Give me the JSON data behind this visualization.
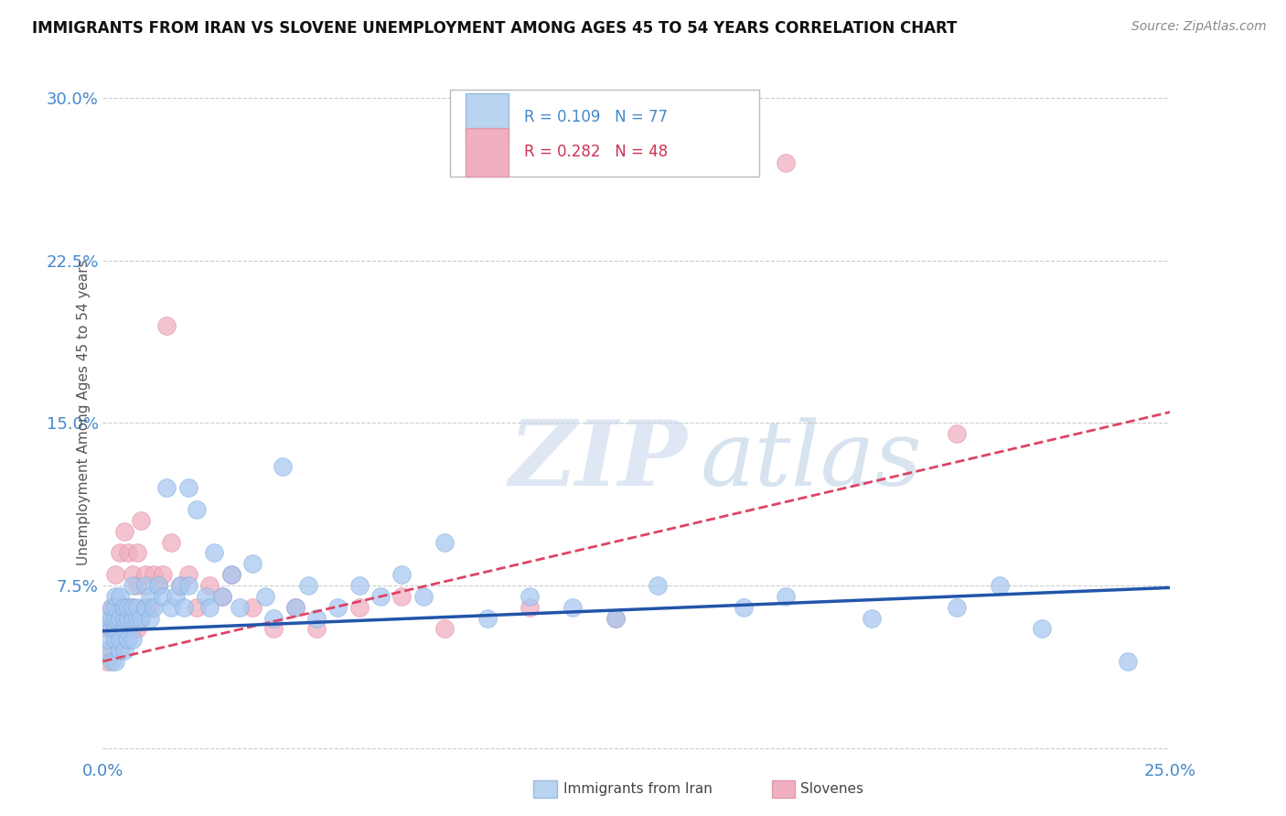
{
  "title": "IMMIGRANTS FROM IRAN VS SLOVENE UNEMPLOYMENT AMONG AGES 45 TO 54 YEARS CORRELATION CHART",
  "source": "Source: ZipAtlas.com",
  "xlim": [
    0.0,
    0.25
  ],
  "ylim": [
    -0.005,
    0.315
  ],
  "yticks": [
    0.0,
    0.075,
    0.15,
    0.225,
    0.3
  ],
  "ytick_labels": [
    "",
    "7.5%",
    "15.0%",
    "22.5%",
    "30.0%"
  ],
  "xticks": [
    0.0,
    0.25
  ],
  "xtick_labels": [
    "0.0%",
    "25.0%"
  ],
  "iran": {
    "name": "Immigrants from Iran",
    "R": 0.109,
    "N": 77,
    "color": "#a8c8f0",
    "edge_color": "#7aaadd",
    "trend_color": "#2255aa",
    "trend_style": "solid",
    "trend_x": [
      0.0,
      0.25
    ],
    "trend_y": [
      0.054,
      0.074
    ],
    "x": [
      0.001,
      0.001,
      0.001,
      0.002,
      0.002,
      0.002,
      0.002,
      0.003,
      0.003,
      0.003,
      0.003,
      0.003,
      0.003,
      0.004,
      0.004,
      0.004,
      0.004,
      0.005,
      0.005,
      0.005,
      0.005,
      0.006,
      0.006,
      0.006,
      0.007,
      0.007,
      0.007,
      0.007,
      0.008,
      0.008,
      0.009,
      0.01,
      0.01,
      0.011,
      0.011,
      0.012,
      0.013,
      0.014,
      0.015,
      0.016,
      0.017,
      0.018,
      0.019,
      0.02,
      0.02,
      0.022,
      0.024,
      0.025,
      0.026,
      0.028,
      0.03,
      0.032,
      0.035,
      0.038,
      0.04,
      0.042,
      0.045,
      0.048,
      0.05,
      0.055,
      0.06,
      0.065,
      0.07,
      0.075,
      0.08,
      0.09,
      0.1,
      0.11,
      0.12,
      0.13,
      0.15,
      0.16,
      0.18,
      0.2,
      0.21,
      0.22,
      0.24
    ],
    "y": [
      0.045,
      0.05,
      0.06,
      0.04,
      0.055,
      0.06,
      0.065,
      0.04,
      0.05,
      0.055,
      0.06,
      0.065,
      0.07,
      0.045,
      0.05,
      0.06,
      0.07,
      0.045,
      0.055,
      0.06,
      0.065,
      0.05,
      0.06,
      0.065,
      0.05,
      0.06,
      0.065,
      0.075,
      0.06,
      0.065,
      0.06,
      0.065,
      0.075,
      0.06,
      0.07,
      0.065,
      0.075,
      0.07,
      0.12,
      0.065,
      0.07,
      0.075,
      0.065,
      0.075,
      0.12,
      0.11,
      0.07,
      0.065,
      0.09,
      0.07,
      0.08,
      0.065,
      0.085,
      0.07,
      0.06,
      0.13,
      0.065,
      0.075,
      0.06,
      0.065,
      0.075,
      0.07,
      0.08,
      0.07,
      0.095,
      0.06,
      0.07,
      0.065,
      0.06,
      0.075,
      0.065,
      0.07,
      0.06,
      0.065,
      0.075,
      0.055,
      0.04
    ]
  },
  "slovene": {
    "name": "Slovenes",
    "R": 0.282,
    "N": 48,
    "color": "#f0b0c0",
    "edge_color": "#e080a0",
    "trend_color": "#dd4466",
    "trend_style": "dashed",
    "trend_x": [
      0.0,
      0.25
    ],
    "trend_y": [
      0.04,
      0.155
    ],
    "x": [
      0.001,
      0.001,
      0.002,
      0.002,
      0.003,
      0.003,
      0.003,
      0.004,
      0.004,
      0.004,
      0.005,
      0.005,
      0.005,
      0.006,
      0.006,
      0.007,
      0.007,
      0.007,
      0.008,
      0.008,
      0.008,
      0.009,
      0.009,
      0.01,
      0.01,
      0.011,
      0.012,
      0.013,
      0.014,
      0.015,
      0.016,
      0.018,
      0.02,
      0.022,
      0.025,
      0.028,
      0.03,
      0.035,
      0.04,
      0.045,
      0.05,
      0.06,
      0.07,
      0.08,
      0.1,
      0.12,
      0.16,
      0.2
    ],
    "y": [
      0.04,
      0.055,
      0.045,
      0.065,
      0.055,
      0.065,
      0.08,
      0.05,
      0.065,
      0.09,
      0.055,
      0.065,
      0.1,
      0.06,
      0.09,
      0.055,
      0.065,
      0.08,
      0.055,
      0.075,
      0.09,
      0.06,
      0.105,
      0.065,
      0.08,
      0.065,
      0.08,
      0.075,
      0.08,
      0.195,
      0.095,
      0.075,
      0.08,
      0.065,
      0.075,
      0.07,
      0.08,
      0.065,
      0.055,
      0.065,
      0.055,
      0.065,
      0.07,
      0.055,
      0.065,
      0.06,
      0.27,
      0.145
    ]
  },
  "legend_box_color_iran": "#b8d4f0",
  "legend_box_color_slovene": "#f0b0c0",
  "title_color": "#111111",
  "title_fontsize": 12,
  "source_color": "#888888",
  "axis_color": "#4488cc",
  "ylabel": "Unemployment Among Ages 45 to 54 years",
  "grid_color": "#cccccc",
  "background_color": "#ffffff",
  "watermark_zip_color": "#c8d8ec",
  "watermark_atlas_color": "#b0c8e0"
}
